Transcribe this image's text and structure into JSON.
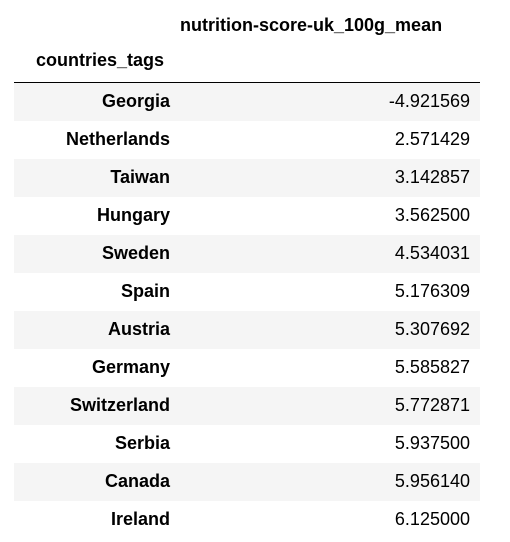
{
  "table": {
    "value_column_header": "nutrition-score-uk_100g_mean",
    "index_name": "countries_tags",
    "rows": [
      {
        "country": "Georgia",
        "value": "-4.921569"
      },
      {
        "country": "Netherlands",
        "value": "2.571429"
      },
      {
        "country": "Taiwan",
        "value": "3.142857"
      },
      {
        "country": "Hungary",
        "value": "3.562500"
      },
      {
        "country": "Sweden",
        "value": "4.534031"
      },
      {
        "country": "Spain",
        "value": "5.176309"
      },
      {
        "country": "Austria",
        "value": "5.307692"
      },
      {
        "country": "Germany",
        "value": "5.585827"
      },
      {
        "country": "Switzerland",
        "value": "5.772871"
      },
      {
        "country": "Serbia",
        "value": "5.937500"
      },
      {
        "country": "Canada",
        "value": "5.956140"
      },
      {
        "country": "Ireland",
        "value": "6.125000"
      }
    ]
  }
}
